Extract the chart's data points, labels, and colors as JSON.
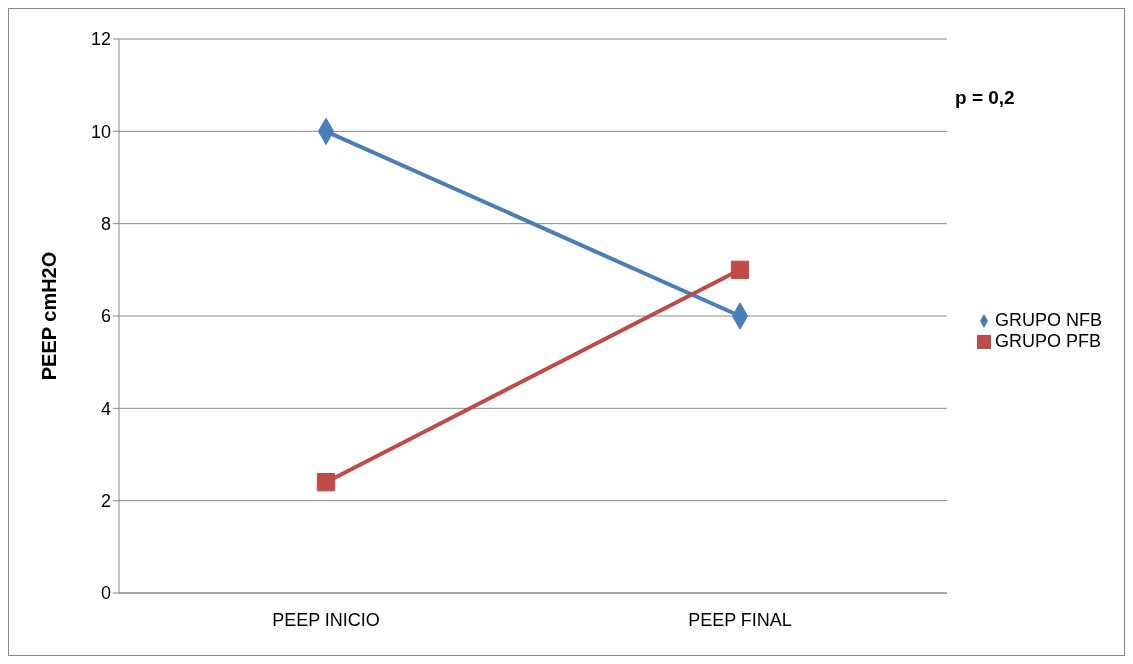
{
  "chart_data": {
    "type": "line",
    "ylabel": "PEEP cmH2O",
    "categories": [
      "PEEP INICIO",
      "PEEP FINAL"
    ],
    "series": [
      {
        "name": "GRUPO NFB",
        "color": "#4a7ebb",
        "values": [
          10,
          6
        ],
        "marker": "diamond"
      },
      {
        "name": "GRUPO PFB",
        "color": "#be4b48",
        "values": [
          2.4,
          7
        ],
        "marker": "square"
      }
    ],
    "ylim": [
      0,
      12
    ],
    "yticks": [
      0,
      2,
      4,
      6,
      8,
      10,
      12
    ],
    "grid": "y",
    "legend": "right",
    "annotations": [
      "p = 0,2"
    ]
  }
}
